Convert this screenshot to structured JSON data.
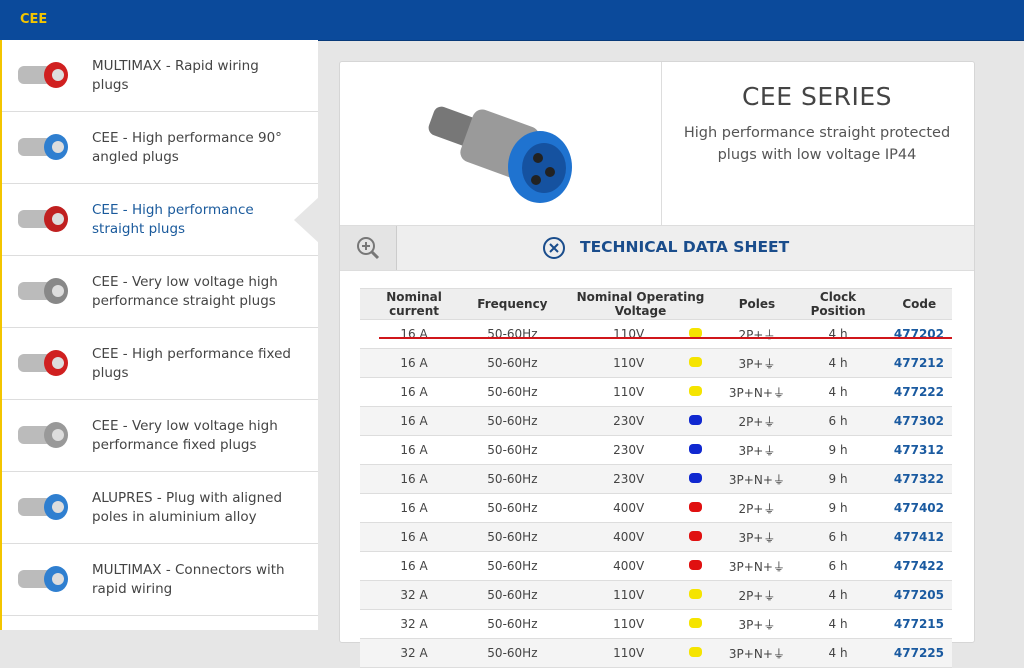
{
  "header": {
    "title": "CEE"
  },
  "sidebar": {
    "active": 2,
    "items": [
      {
        "label": "MULTIMAX - Rapid wiring plugs"
      },
      {
        "label": "CEE - High performance 90° angled plugs"
      },
      {
        "label": "CEE - High performance straight plugs"
      },
      {
        "label": "CEE - Very low voltage high performance straight plugs"
      },
      {
        "label": "CEE - High performance fixed plugs"
      },
      {
        "label": "CEE - Very low voltage high performance fixed plugs"
      },
      {
        "label": "ALUPRES - Plug with aligned poles in aluminium alloy"
      },
      {
        "label": "MULTIMAX - Connectors with rapid wiring"
      }
    ]
  },
  "product": {
    "title": "CEE SERIES",
    "description": "High performance straight protected plugs with low voltage IP44",
    "sheet_title": "TECHNICAL DATA SHEET"
  },
  "table": {
    "headers": [
      "Nominal current",
      "Frequency",
      "Nominal Operating Voltage",
      "Poles",
      "Clock Position",
      "Code"
    ],
    "rows": [
      {
        "current": "16 A",
        "frequency": "50-60Hz",
        "voltage": "110V",
        "color": "#f5e400",
        "poles": "2P+⏚",
        "clock": "4 h",
        "code": "477202"
      },
      {
        "current": "16 A",
        "frequency": "50-60Hz",
        "voltage": "110V",
        "color": "#f5e400",
        "poles": "3P+⏚",
        "clock": "4 h",
        "code": "477212"
      },
      {
        "current": "16 A",
        "frequency": "50-60Hz",
        "voltage": "110V",
        "color": "#f5e400",
        "poles": "3P+N+⏚",
        "clock": "4 h",
        "code": "477222"
      },
      {
        "current": "16 A",
        "frequency": "50-60Hz",
        "voltage": "230V",
        "color": "#1028d0",
        "poles": "2P+⏚",
        "clock": "6 h",
        "code": "477302"
      },
      {
        "current": "16 A",
        "frequency": "50-60Hz",
        "voltage": "230V",
        "color": "#1028d0",
        "poles": "3P+⏚",
        "clock": "9 h",
        "code": "477312"
      },
      {
        "current": "16 A",
        "frequency": "50-60Hz",
        "voltage": "230V",
        "color": "#1028d0",
        "poles": "3P+N+⏚",
        "clock": "9 h",
        "code": "477322"
      },
      {
        "current": "16 A",
        "frequency": "50-60Hz",
        "voltage": "400V",
        "color": "#e01010",
        "poles": "2P+⏚",
        "clock": "9 h",
        "code": "477402"
      },
      {
        "current": "16 A",
        "frequency": "50-60Hz",
        "voltage": "400V",
        "color": "#e01010",
        "poles": "3P+⏚",
        "clock": "6 h",
        "code": "477412"
      },
      {
        "current": "16 A",
        "frequency": "50-60Hz",
        "voltage": "400V",
        "color": "#e01010",
        "poles": "3P+N+⏚",
        "clock": "6 h",
        "code": "477422"
      },
      {
        "current": "32 A",
        "frequency": "50-60Hz",
        "voltage": "110V",
        "color": "#f5e400",
        "poles": "2P+⏚",
        "clock": "4 h",
        "code": "477205"
      },
      {
        "current": "32 A",
        "frequency": "50-60Hz",
        "voltage": "110V",
        "color": "#f5e400",
        "poles": "3P+⏚",
        "clock": "4 h",
        "code": "477215"
      },
      {
        "current": "32 A",
        "frequency": "50-60Hz",
        "voltage": "110V",
        "color": "#f5e400",
        "poles": "3P+N+⏚",
        "clock": "4 h",
        "code": "477225"
      }
    ]
  }
}
